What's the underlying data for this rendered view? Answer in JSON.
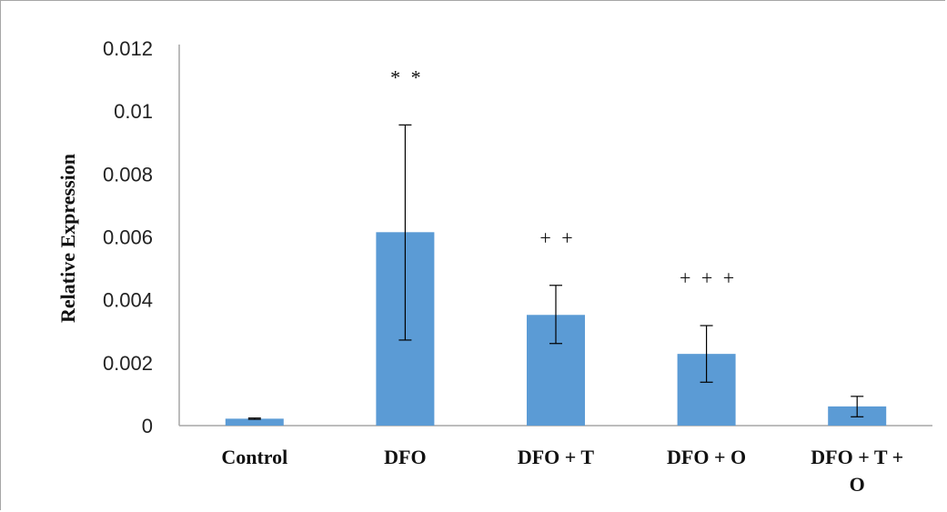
{
  "chart_data": {
    "type": "bar",
    "title": "",
    "xlabel": "",
    "ylabel": "Relative Expression",
    "ylim": [
      0,
      0.012
    ],
    "yticks": [
      "0",
      "0.002",
      "0.004",
      "0.006",
      "0.008",
      "0.01",
      "0.012"
    ],
    "ytick_values": [
      0,
      0.002,
      0.004,
      0.006,
      0.008,
      0.01,
      0.012
    ],
    "categories": [
      [
        "Control"
      ],
      [
        "DFO"
      ],
      [
        "DFO + T"
      ],
      [
        "DFO + O"
      ],
      [
        "DFO + T +",
        "O"
      ]
    ],
    "values": [
      0.00022,
      0.00615,
      0.00352,
      0.00228,
      0.00061
    ],
    "error_low": [
      0.0002,
      0.00272,
      0.00261,
      0.00138,
      0.00028
    ],
    "error_high": [
      0.00024,
      0.00956,
      0.00446,
      0.00318,
      0.00093
    ],
    "annotations": [
      "",
      "* *",
      "+ +",
      "+ + +",
      ""
    ],
    "bar_color": "#5b9bd5",
    "grid": false,
    "legend": "none"
  }
}
